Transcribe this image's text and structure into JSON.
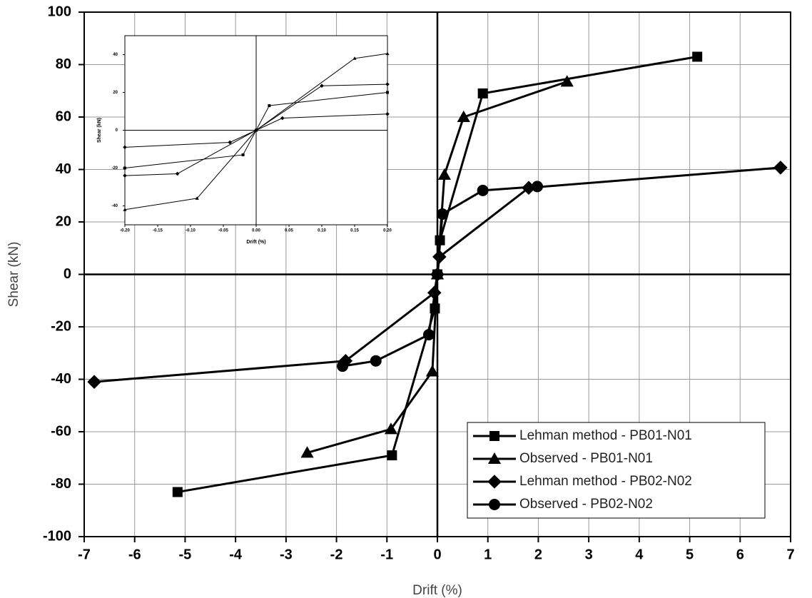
{
  "chart_data": [
    {
      "type": "line",
      "xlabel": "Drift (%)",
      "ylabel": "Shear (kN)",
      "xlim": [
        -7,
        7
      ],
      "xticks": [
        -7,
        -6,
        -5,
        -4,
        -3,
        -2,
        -1,
        0,
        1,
        2,
        3,
        4,
        5,
        6,
        7
      ],
      "ylim": [
        -100,
        100
      ],
      "yticks": [
        -100,
        -80,
        -60,
        -40,
        -20,
        0,
        20,
        40,
        60,
        80,
        100
      ],
      "grid": true,
      "zero_lines": true,
      "legend": "lower right",
      "series": [
        {
          "name": "Lehman method - PB01-N01",
          "color": "#000000",
          "marker": "square",
          "x": [
            -5.15,
            -0.9,
            -0.05,
            0,
            0.05,
            0.9,
            5.15
          ],
          "values": [
            -83,
            -69,
            -13,
            0,
            13,
            69,
            83
          ]
        },
        {
          "name": "Observed  - PB01-N01",
          "color": "#000000",
          "marker": "triangle",
          "x": [
            -2.58,
            -0.92,
            -0.1,
            0,
            0.14,
            0.52,
            2.57
          ],
          "values": [
            -68,
            -59,
            -37,
            0,
            38,
            60,
            73.5
          ]
        },
        {
          "name": "Lehman method - PB02-N02",
          "color": "#000000",
          "marker": "diamond",
          "x": [
            -6.8,
            -1.82,
            -0.06,
            0,
            0.04,
            1.81,
            6.8
          ],
          "values": [
            -41,
            -33,
            -7,
            0,
            6.7,
            33,
            40.7
          ]
        },
        {
          "name": "Observed  - PB02-N02",
          "color": "#000000",
          "marker": "circle",
          "x": [
            -1.88,
            -1.22,
            -0.17,
            0,
            0.1,
            0.9,
            1.98
          ],
          "values": [
            -35,
            -33,
            -23,
            0,
            23,
            32,
            33.5
          ]
        }
      ]
    },
    {
      "type": "line",
      "xlabel": "Drift (%)",
      "ylabel": "Shear (kN)",
      "xlim": [
        -0.2,
        0.2
      ],
      "xticks": [
        {
          "value": -0.2,
          "label": "-0.20"
        },
        {
          "value": -0.15,
          "label": "-0.15"
        },
        {
          "value": -0.1,
          "label": "-0.10"
        },
        {
          "value": -0.05,
          "label": "-0.05"
        },
        {
          "value": 0,
          "label": "0.00"
        },
        {
          "value": 0.05,
          "label": "0.05"
        },
        {
          "value": 0.1,
          "label": "0.10"
        },
        {
          "value": 0.15,
          "label": "0.15"
        },
        {
          "value": 0.2,
          "label": "0.20"
        }
      ],
      "ylim": [
        -50,
        50
      ],
      "yticks": [
        -40,
        -20,
        0,
        20,
        40
      ],
      "grid": false,
      "zero_lines": true,
      "series": [
        {
          "color": "#000000",
          "marker": "triangle",
          "x": [
            -0.2,
            -0.09,
            0,
            0.15,
            0.2
          ],
          "values": [
            -42,
            -36,
            0,
            38,
            40.5
          ]
        },
        {
          "color": "#000000",
          "marker": "diamond",
          "x": [
            -0.2,
            -0.12,
            0,
            0.1,
            0.2
          ],
          "values": [
            -24,
            -23,
            0,
            23.5,
            24.3
          ]
        },
        {
          "color": "#000000",
          "marker": "diamond",
          "x": [
            -0.2,
            -0.04,
            0,
            0.04,
            0.2
          ],
          "values": [
            -9,
            -6.4,
            0,
            6.4,
            8.6
          ]
        },
        {
          "color": "#000000",
          "marker": "square",
          "x": [
            -0.2,
            -0.02,
            0,
            0.02,
            0.2
          ],
          "values": [
            -20,
            -13,
            0,
            13,
            20
          ]
        }
      ]
    }
  ]
}
